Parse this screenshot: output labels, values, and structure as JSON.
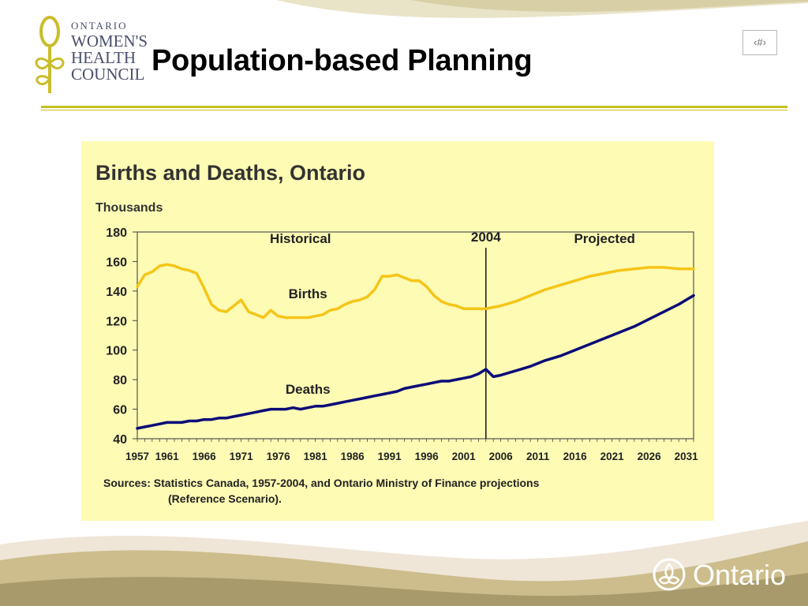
{
  "slide": {
    "title": "Population-based Planning",
    "slide_number": "‹#›",
    "logo": {
      "line1": "ONTARIO",
      "line2": "WOMEN'S",
      "line3": "HEALTH",
      "line4": "COUNCIL"
    },
    "brand_text": "Ontario",
    "colors": {
      "rule": "#c7c020",
      "panel": "#fdfbb4",
      "births": "#f5c518",
      "deaths": "#0b0b78",
      "wave": "#c9b98a"
    }
  },
  "chart_data": {
    "type": "line",
    "title": "Births and Deaths, Ontario",
    "ylabel": "Thousands",
    "xlabel": "",
    "xlim": [
      1957,
      2032
    ],
    "ylim": [
      40,
      180
    ],
    "yticks": [
      40,
      60,
      80,
      100,
      120,
      140,
      160,
      180
    ],
    "xtick_labels": [
      "1957",
      "1961",
      "1966",
      "1971",
      "1976",
      "1981",
      "1986",
      "1991",
      "1996",
      "2001",
      "2006",
      "2011",
      "2016",
      "2021",
      "2026",
      "2031"
    ],
    "grid": false,
    "annotations": {
      "historical": "Historical",
      "projected": "Projected",
      "divider_label": "2004",
      "divider_year": 2004,
      "births_label": "Births",
      "deaths_label": "Deaths"
    },
    "series": [
      {
        "name": "Births",
        "points": [
          [
            1957,
            143
          ],
          [
            1958,
            151
          ],
          [
            1959,
            153
          ],
          [
            1960,
            157
          ],
          [
            1961,
            158
          ],
          [
            1962,
            157
          ],
          [
            1963,
            155
          ],
          [
            1964,
            154
          ],
          [
            1965,
            152
          ],
          [
            1966,
            142
          ],
          [
            1967,
            131
          ],
          [
            1968,
            127
          ],
          [
            1969,
            126
          ],
          [
            1970,
            130
          ],
          [
            1971,
            134
          ],
          [
            1972,
            126
          ],
          [
            1973,
            124
          ],
          [
            1974,
            122
          ],
          [
            1975,
            127
          ],
          [
            1976,
            123
          ],
          [
            1977,
            122
          ],
          [
            1978,
            122
          ],
          [
            1979,
            122
          ],
          [
            1980,
            122
          ],
          [
            1981,
            123
          ],
          [
            1982,
            124
          ],
          [
            1983,
            127
          ],
          [
            1984,
            128
          ],
          [
            1985,
            131
          ],
          [
            1986,
            133
          ],
          [
            1987,
            134
          ],
          [
            1988,
            136
          ],
          [
            1989,
            141
          ],
          [
            1990,
            150
          ],
          [
            1991,
            150
          ],
          [
            1992,
            151
          ],
          [
            1993,
            149
          ],
          [
            1994,
            147
          ],
          [
            1995,
            147
          ],
          [
            1996,
            143
          ],
          [
            1997,
            137
          ],
          [
            1998,
            133
          ],
          [
            1999,
            131
          ],
          [
            2000,
            130
          ],
          [
            2001,
            128
          ],
          [
            2002,
            128
          ],
          [
            2003,
            128
          ],
          [
            2004,
            128
          ],
          [
            2005,
            129
          ],
          [
            2006,
            130
          ],
          [
            2008,
            133
          ],
          [
            2010,
            137
          ],
          [
            2012,
            141
          ],
          [
            2014,
            144
          ],
          [
            2016,
            147
          ],
          [
            2018,
            150
          ],
          [
            2020,
            152
          ],
          [
            2022,
            154
          ],
          [
            2024,
            155
          ],
          [
            2026,
            156
          ],
          [
            2028,
            156
          ],
          [
            2030,
            155
          ],
          [
            2032,
            155
          ]
        ]
      },
      {
        "name": "Deaths",
        "points": [
          [
            1957,
            47
          ],
          [
            1958,
            48
          ],
          [
            1959,
            49
          ],
          [
            1960,
            50
          ],
          [
            1961,
            51
          ],
          [
            1962,
            51
          ],
          [
            1963,
            51
          ],
          [
            1964,
            52
          ],
          [
            1965,
            52
          ],
          [
            1966,
            53
          ],
          [
            1967,
            53
          ],
          [
            1968,
            54
          ],
          [
            1969,
            54
          ],
          [
            1970,
            55
          ],
          [
            1971,
            56
          ],
          [
            1972,
            57
          ],
          [
            1973,
            58
          ],
          [
            1974,
            59
          ],
          [
            1975,
            60
          ],
          [
            1976,
            60
          ],
          [
            1977,
            60
          ],
          [
            1978,
            61
          ],
          [
            1979,
            60
          ],
          [
            1980,
            61
          ],
          [
            1981,
            62
          ],
          [
            1982,
            62
          ],
          [
            1983,
            63
          ],
          [
            1984,
            64
          ],
          [
            1985,
            65
          ],
          [
            1986,
            66
          ],
          [
            1987,
            67
          ],
          [
            1988,
            68
          ],
          [
            1989,
            69
          ],
          [
            1990,
            70
          ],
          [
            1991,
            71
          ],
          [
            1992,
            72
          ],
          [
            1993,
            74
          ],
          [
            1994,
            75
          ],
          [
            1995,
            76
          ],
          [
            1996,
            77
          ],
          [
            1997,
            78
          ],
          [
            1998,
            79
          ],
          [
            1999,
            79
          ],
          [
            2000,
            80
          ],
          [
            2001,
            81
          ],
          [
            2002,
            82
          ],
          [
            2003,
            84
          ],
          [
            2004,
            87
          ],
          [
            2005,
            82
          ],
          [
            2006,
            83
          ],
          [
            2008,
            86
          ],
          [
            2010,
            89
          ],
          [
            2012,
            93
          ],
          [
            2014,
            96
          ],
          [
            2016,
            100
          ],
          [
            2018,
            104
          ],
          [
            2020,
            108
          ],
          [
            2022,
            112
          ],
          [
            2024,
            116
          ],
          [
            2026,
            121
          ],
          [
            2028,
            126
          ],
          [
            2030,
            131
          ],
          [
            2032,
            137
          ]
        ]
      }
    ],
    "source_line1": "Sources:  Statistics Canada, 1957-2004, and Ontario Ministry of Finance projections",
    "source_line2": "(Reference Scenario)."
  }
}
